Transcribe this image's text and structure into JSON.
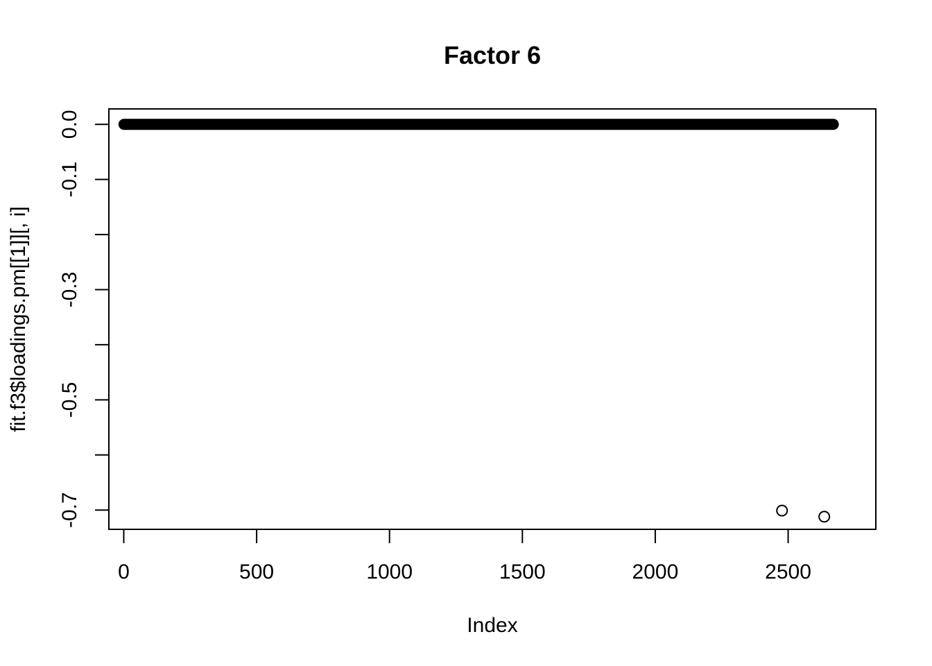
{
  "chart_data": {
    "type": "scatter",
    "title": "Factor 6",
    "xlabel": "Index",
    "ylabel": "fit.f3$loadings.pm[[1]][, i]",
    "xlim": [
      -56,
      2830
    ],
    "ylim": [
      -0.735,
      0.028
    ],
    "x_ticks": [
      0,
      500,
      1000,
      1500,
      2000,
      2500
    ],
    "x_tick_labels": [
      "0",
      "500",
      "1000",
      "1500",
      "2000",
      "2500"
    ],
    "y_ticks": [
      0.0,
      -0.1,
      -0.2,
      -0.3,
      -0.4,
      -0.5,
      -0.6,
      -0.7
    ],
    "y_tick_labels": [
      "0.0",
      "-0.1",
      "",
      "-0.3",
      "",
      "-0.5",
      "",
      "-0.7"
    ],
    "grid": false,
    "legend": "none",
    "marker": "open-circle",
    "colors": {
      "marker": "#000000",
      "axis": "#000000",
      "background": "#ffffff"
    },
    "dense_series": {
      "x_start": 1,
      "x_end": 2670,
      "y": 0.0
    },
    "points": [
      {
        "x": 2477,
        "y": -0.701
      },
      {
        "x": 2636,
        "y": -0.712
      }
    ]
  }
}
